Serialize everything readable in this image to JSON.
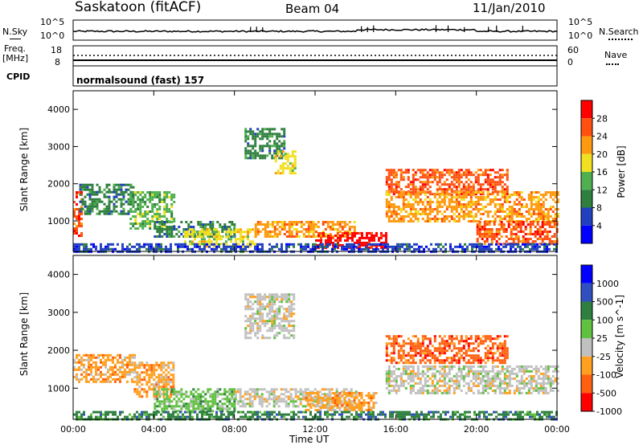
{
  "header": {
    "site": "Saskatoon (fitACF)",
    "beam": "Beam 04",
    "date": "11/Jan/2010"
  },
  "top_panels": {
    "nsky_label": "N.Sky",
    "nsky_ticks": [
      "10^5",
      "10^0"
    ],
    "nsearch_label": "N.Search",
    "nsearch_ticks": [
      "10^5",
      "10^0"
    ],
    "freq_label_1": "Freq.",
    "freq_label_2": "[MHz]",
    "freq_ticks": [
      "18",
      "8"
    ],
    "nave_label": "Nave",
    "nave_ticks": [
      "60",
      "0"
    ],
    "cpid_label": "CPID",
    "cpid_text": "normalsound (fast) 157"
  },
  "chart_data": [
    {
      "type": "heatmap",
      "name": "power",
      "ylabel": "Slant Range [km]",
      "yticks": [
        "4000",
        "3000",
        "2000",
        "1000"
      ],
      "ylim": [
        180,
        4500
      ],
      "xlim": [
        "00:00",
        "24:00"
      ],
      "colorbar_label": "Power [dB]",
      "colorbar_ticks": [
        "28",
        "24",
        "20",
        "16",
        "12",
        "8",
        "4"
      ],
      "colors": [
        "#0000ff",
        "#2040c0",
        "#2f7f3f",
        "#50b050",
        "#f0e020",
        "#ff9a10",
        "#ff5010",
        "#ff0000"
      ],
      "regions": [
        {
          "t": [
            0.0,
            0.4
          ],
          "r": [
            600,
            1800
          ],
          "v": 24
        },
        {
          "t": [
            0.3,
            3.0
          ],
          "r": [
            1200,
            2000
          ],
          "v": 10
        },
        {
          "t": [
            2.8,
            5.0
          ],
          "r": [
            800,
            1800
          ],
          "v": 14
        },
        {
          "t": [
            4.0,
            8.0
          ],
          "r": [
            600,
            1000
          ],
          "v": 12
        },
        {
          "t": [
            5.5,
            9.0
          ],
          "r": [
            300,
            800
          ],
          "v": 16
        },
        {
          "t": [
            8.5,
            10.5
          ],
          "r": [
            2700,
            3500
          ],
          "v": 10
        },
        {
          "t": [
            10.0,
            11.0
          ],
          "r": [
            2300,
            2900
          ],
          "v": 16
        },
        {
          "t": [
            9.0,
            14.0
          ],
          "r": [
            600,
            1000
          ],
          "v": 20
        },
        {
          "t": [
            12.0,
            15.5
          ],
          "r": [
            300,
            700
          ],
          "v": 28
        },
        {
          "t": [
            15.5,
            21.5
          ],
          "r": [
            1700,
            2400
          ],
          "v": 24
        },
        {
          "t": [
            15.5,
            24.0
          ],
          "r": [
            1000,
            1800
          ],
          "v": 20
        },
        {
          "t": [
            20.0,
            24.0
          ],
          "r": [
            400,
            1000
          ],
          "v": 26
        },
        {
          "t": [
            0.0,
            24.0
          ],
          "r": [
            180,
            400
          ],
          "v": 8
        }
      ]
    },
    {
      "type": "heatmap",
      "name": "velocity",
      "ylabel": "Slant Range [km]",
      "yticks": [
        "4000",
        "3000",
        "2000",
        "1000"
      ],
      "ylim": [
        180,
        4500
      ],
      "xlim": [
        "00:00",
        "24:00"
      ],
      "xlabel": "Time UT",
      "xticks": [
        "00:00",
        "04:00",
        "08:00",
        "12:00",
        "16:00",
        "20:00",
        "00:00"
      ],
      "colorbar_label": "Velocity [m s^-1]",
      "colorbar_ticks": [
        "1000",
        "500",
        "100",
        "25",
        "-25",
        "-100",
        "-500",
        "-1000"
      ],
      "colors": [
        "#0000ff",
        "#3050c0",
        "#2f8040",
        "#60c040",
        "#c0c0c0",
        "#ffa020",
        "#ff6010",
        "#ff0000"
      ],
      "regions": [
        {
          "t": [
            0.0,
            3.0
          ],
          "r": [
            1200,
            1900
          ],
          "v": -100
        },
        {
          "t": [
            3.0,
            5.0
          ],
          "r": [
            800,
            1700
          ],
          "v": -100
        },
        {
          "t": [
            4.0,
            8.0
          ],
          "r": [
            400,
            1000
          ],
          "v": 25
        },
        {
          "t": [
            8.5,
            11.0
          ],
          "r": [
            2300,
            3500
          ],
          "v": 0
        },
        {
          "t": [
            8.0,
            14.0
          ],
          "r": [
            500,
            1000
          ],
          "v": 0
        },
        {
          "t": [
            11.5,
            15.0
          ],
          "r": [
            400,
            900
          ],
          "v": -100
        },
        {
          "t": [
            15.5,
            21.5
          ],
          "r": [
            1700,
            2400
          ],
          "v": -500
        },
        {
          "t": [
            15.5,
            24.0
          ],
          "r": [
            900,
            1600
          ],
          "v": 0
        },
        {
          "t": [
            0.0,
            24.0
          ],
          "r": [
            180,
            400
          ],
          "v": 100
        }
      ]
    }
  ]
}
